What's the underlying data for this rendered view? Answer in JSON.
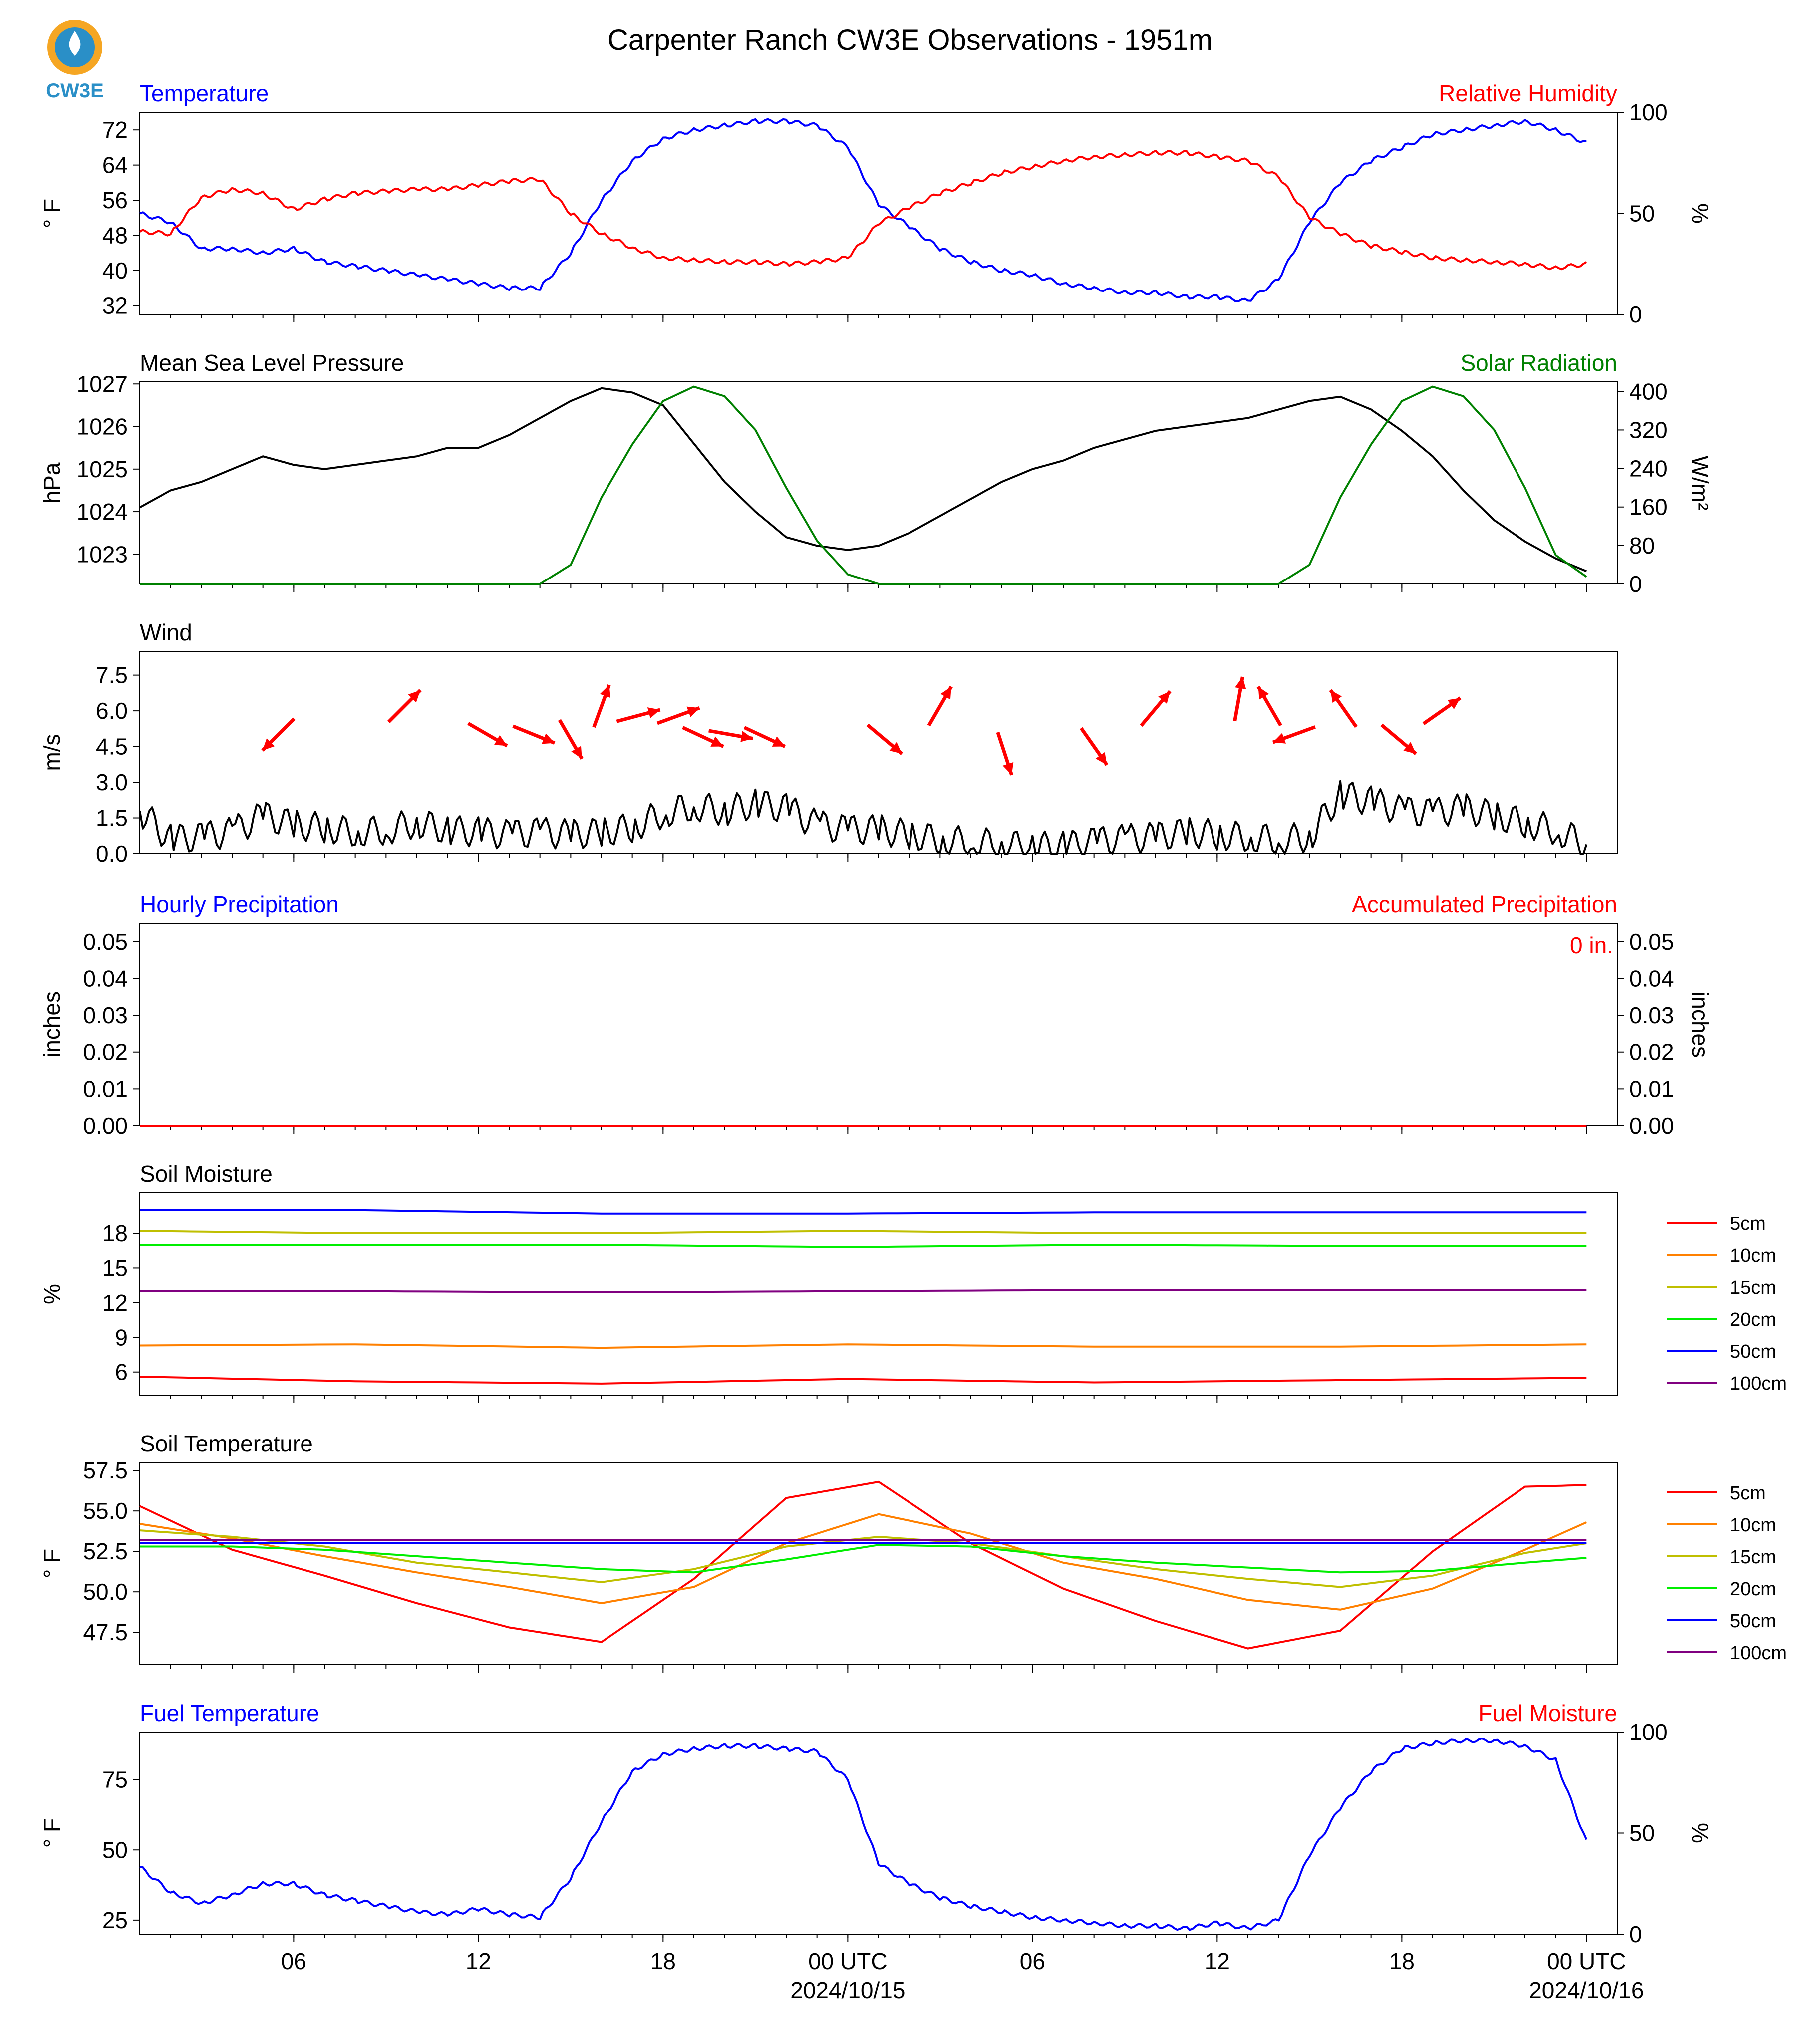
{
  "title": "Carpenter Ranch CW3E Observations - 1951m",
  "logo_text": "CW3E",
  "time_axis": {
    "tick_labels": [
      "06",
      "12",
      "18",
      "00 UTC",
      "06",
      "12",
      "18",
      "00 UTC"
    ],
    "date_labels": [
      "2024/10/15",
      "2024/10/16"
    ]
  },
  "chart_data": [
    {
      "type": "line",
      "title_left": "Temperature",
      "title_right": "Relative Humidity",
      "ylabel_left": "° F",
      "ylabel_right": "%",
      "ylim_left": [
        30,
        76
      ],
      "ylim_right": [
        0,
        100
      ],
      "yticks_left": [
        32,
        40,
        48,
        56,
        64,
        72
      ],
      "yticks_right": [
        0,
        50,
        100
      ],
      "hours": [
        1,
        2,
        3,
        4,
        5,
        6,
        7,
        8,
        9,
        10,
        11,
        12,
        13,
        14,
        15,
        16,
        17,
        18,
        19,
        20,
        21,
        22,
        23,
        24,
        25,
        26,
        27,
        28,
        29,
        30,
        31,
        32,
        33,
        34,
        35,
        36,
        37,
        38,
        39,
        40,
        41,
        42,
        43,
        44,
        45,
        46,
        47,
        48
      ],
      "series": [
        {
          "name": "Temperature",
          "axis": "left",
          "color": "#0000ff",
          "values": [
            53,
            51,
            45,
            45,
            44,
            45,
            42,
            41,
            40,
            39,
            38,
            37,
            36,
            36,
            44,
            56,
            65,
            70,
            72,
            73,
            74,
            74,
            73,
            68,
            55,
            50,
            45,
            42,
            40,
            39,
            37,
            36,
            35,
            35,
            34,
            34,
            33,
            38,
            51,
            60,
            65,
            68,
            71,
            72,
            73,
            74,
            72,
            69
          ]
        },
        {
          "name": "Relative Humidity",
          "axis": "right",
          "color": "#ff0000",
          "values": [
            41,
            40,
            58,
            62,
            60,
            52,
            57,
            60,
            61,
            62,
            62,
            64,
            66,
            67,
            50,
            40,
            33,
            28,
            27,
            26,
            26,
            25,
            26,
            28,
            45,
            53,
            60,
            65,
            70,
            73,
            76,
            78,
            79,
            80,
            80,
            78,
            76,
            68,
            48,
            40,
            34,
            31,
            28,
            27,
            26,
            25,
            23,
            25
          ]
        }
      ]
    },
    {
      "type": "line",
      "title_left": "Mean Sea Level Pressure",
      "title_right": "Solar Radiation",
      "ylabel_left": "hPa",
      "ylabel_right": "W/m²",
      "ylim_left": [
        1022.3,
        1027.05
      ],
      "ylim_right": [
        0,
        420
      ],
      "yticks_left": [
        1023,
        1024,
        1025,
        1026,
        1027
      ],
      "yticks_right": [
        0,
        80,
        160,
        240,
        320,
        400
      ],
      "hours": [
        1,
        2,
        3,
        4,
        5,
        6,
        7,
        8,
        9,
        10,
        11,
        12,
        13,
        14,
        15,
        16,
        17,
        18,
        19,
        20,
        21,
        22,
        23,
        24,
        25,
        26,
        27,
        28,
        29,
        30,
        31,
        32,
        33,
        34,
        35,
        36,
        37,
        38,
        39,
        40,
        41,
        42,
        43,
        44,
        45,
        46,
        47,
        48
      ],
      "series": [
        {
          "name": "Mean Sea Level Pressure",
          "axis": "left",
          "color": "#000000",
          "values": [
            1024.1,
            1024.5,
            1024.7,
            1025.0,
            1025.3,
            1025.1,
            1025.0,
            1025.1,
            1025.2,
            1025.3,
            1025.5,
            1025.5,
            1025.8,
            1026.2,
            1026.6,
            1026.9,
            1026.8,
            1026.5,
            1025.6,
            1024.7,
            1024.0,
            1023.4,
            1023.2,
            1023.1,
            1023.2,
            1023.5,
            1023.9,
            1024.3,
            1024.7,
            1025.0,
            1025.2,
            1025.5,
            1025.7,
            1025.9,
            1026.0,
            1026.1,
            1026.2,
            1026.4,
            1026.6,
            1026.7,
            1026.4,
            1025.9,
            1025.3,
            1024.5,
            1023.8,
            1023.3,
            1022.9,
            1022.6
          ]
        },
        {
          "name": "Solar Radiation",
          "axis": "right",
          "color": "#008000",
          "values": [
            0,
            0,
            0,
            0,
            0,
            0,
            0,
            0,
            0,
            0,
            0,
            0,
            0,
            0,
            40,
            180,
            290,
            380,
            410,
            390,
            320,
            200,
            90,
            20,
            0,
            0,
            0,
            0,
            0,
            0,
            0,
            0,
            0,
            0,
            0,
            0,
            0,
            0,
            40,
            180,
            290,
            380,
            410,
            390,
            320,
            200,
            60,
            15
          ]
        }
      ]
    },
    {
      "type": "line",
      "title_left": "Wind",
      "ylabel_left": "m/s",
      "ylim_left": [
        0,
        8.5
      ],
      "yticks_left": [
        0.0,
        1.5,
        3.0,
        4.5,
        6.0,
        7.5
      ],
      "hours": [
        1,
        2,
        3,
        4,
        5,
        6,
        7,
        8,
        9,
        10,
        11,
        12,
        13,
        14,
        15,
        16,
        17,
        18,
        19,
        20,
        21,
        22,
        23,
        24,
        25,
        26,
        27,
        28,
        29,
        30,
        31,
        32,
        33,
        34,
        35,
        36,
        37,
        38,
        39,
        40,
        41,
        42,
        43,
        44,
        45,
        46,
        47,
        48
      ],
      "series": [
        {
          "name": "Wind speed",
          "color": "#000000",
          "values": [
            1.8,
            0.6,
            0.7,
            0.9,
            1.6,
            1.2,
            1.1,
            0.9,
            1.0,
            1.3,
            1.0,
            0.9,
            0.8,
            0.9,
            0.8,
            0.9,
            1.1,
            1.7,
            2.0,
            1.8,
            2.1,
            1.9,
            1.2,
            1.0,
            1.0,
            0.8,
            0.6,
            0.5,
            0.4,
            0.3,
            0.3,
            0.5,
            0.6,
            0.7,
            0.9,
            0.8,
            0.7,
            0.6,
            0.7,
            2.5,
            2.2,
            1.8,
            1.7,
            1.9,
            1.6,
            1.3,
            1.0,
            0.4
          ]
        }
      ],
      "wind_arrows": [
        {
          "hour": 5.5,
          "speed": 5.0,
          "angle_deg": 135
        },
        {
          "hour": 9.6,
          "speed": 6.2,
          "angle_deg": -45
        },
        {
          "hour": 12.3,
          "speed": 5.0,
          "angle_deg": 30
        },
        {
          "hour": 13.8,
          "speed": 5.0,
          "angle_deg": 22
        },
        {
          "hour": 15.0,
          "speed": 4.8,
          "angle_deg": 60
        },
        {
          "hour": 16.0,
          "speed": 6.2,
          "angle_deg": -70
        },
        {
          "hour": 17.2,
          "speed": 5.8,
          "angle_deg": -15
        },
        {
          "hour": 18.5,
          "speed": 5.8,
          "angle_deg": -20
        },
        {
          "hour": 19.3,
          "speed": 4.9,
          "angle_deg": 25
        },
        {
          "hour": 20.2,
          "speed": 5.0,
          "angle_deg": 10
        },
        {
          "hour": 21.3,
          "speed": 4.9,
          "angle_deg": 25
        },
        {
          "hour": 25.2,
          "speed": 4.8,
          "angle_deg": 40
        },
        {
          "hour": 27.0,
          "speed": 6.2,
          "angle_deg": -60
        },
        {
          "hour": 29.1,
          "speed": 4.2,
          "angle_deg": 72
        },
        {
          "hour": 32.0,
          "speed": 4.5,
          "angle_deg": 55
        },
        {
          "hour": 34.0,
          "speed": 6.1,
          "angle_deg": -50
        },
        {
          "hour": 36.7,
          "speed": 6.5,
          "angle_deg": -80
        },
        {
          "hour": 37.7,
          "speed": 6.2,
          "angle_deg": -120
        },
        {
          "hour": 38.5,
          "speed": 5.0,
          "angle_deg": 160
        },
        {
          "hour": 40.1,
          "speed": 6.1,
          "angle_deg": -125
        },
        {
          "hour": 41.9,
          "speed": 4.8,
          "angle_deg": 40
        },
        {
          "hour": 43.3,
          "speed": 6.0,
          "angle_deg": -35
        }
      ]
    },
    {
      "type": "line",
      "title_left": "Hourly Precipitation",
      "title_right": "Accumulated Precipitation",
      "ylabel_left": "inches",
      "ylabel_right": "inches",
      "ylim_left": [
        0,
        0.055
      ],
      "ylim_right": [
        0,
        0.055
      ],
      "yticks_left": [
        0.0,
        0.01,
        0.02,
        0.03,
        0.04,
        0.05
      ],
      "yticks_right": [
        0.0,
        0.01,
        0.02,
        0.03,
        0.04,
        0.05
      ],
      "annotation": "0 in.",
      "series": [
        {
          "name": "Hourly Precipitation",
          "color": "#0000ff",
          "values": [
            0.0,
            0.0
          ]
        },
        {
          "name": "Accumulated Precipitation",
          "color": "#ff0000",
          "values": [
            0.0,
            0.0
          ]
        }
      ]
    },
    {
      "type": "line",
      "title_left": "Soil Moisture",
      "ylabel_left": "%",
      "ylim_left": [
        4,
        21.5
      ],
      "yticks_left": [
        6,
        9,
        12,
        15,
        18
      ],
      "hours": [
        1,
        8,
        16,
        24,
        32,
        40,
        48
      ],
      "series": [
        {
          "name": "5cm",
          "color": "#ff0000",
          "values": [
            5.6,
            5.2,
            5.0,
            5.4,
            5.1,
            5.3,
            5.5
          ]
        },
        {
          "name": "10cm",
          "color": "#ff8000",
          "values": [
            8.3,
            8.4,
            8.1,
            8.4,
            8.2,
            8.2,
            8.4
          ]
        },
        {
          "name": "15cm",
          "color": "#bfbf00",
          "values": [
            18.2,
            18.0,
            18.0,
            18.2,
            18.0,
            18.0,
            18.0
          ]
        },
        {
          "name": "20cm",
          "color": "#00ee00",
          "values": [
            17.0,
            17.0,
            17.0,
            16.8,
            17.0,
            16.9,
            16.9
          ]
        },
        {
          "name": "50cm",
          "color": "#0000ff",
          "values": [
            20.0,
            20.0,
            19.7,
            19.7,
            19.8,
            19.8,
            19.8
          ]
        },
        {
          "name": "100cm",
          "color": "#800080",
          "values": [
            13.0,
            13.0,
            12.9,
            13.0,
            13.1,
            13.1,
            13.1
          ]
        }
      ]
    },
    {
      "type": "line",
      "title_left": "Soil Temperature",
      "ylabel_left": "° F",
      "ylim_left": [
        45.5,
        58.0
      ],
      "yticks_left": [
        47.5,
        50.0,
        52.5,
        55.0,
        57.5
      ],
      "hours": [
        1,
        4,
        7,
        10,
        13,
        16,
        19,
        22,
        25,
        28,
        31,
        34,
        37,
        40,
        43,
        46,
        48
      ],
      "series": [
        {
          "name": "5cm",
          "color": "#ff0000",
          "values": [
            55.3,
            52.6,
            51.0,
            49.3,
            47.8,
            46.9,
            50.8,
            55.8,
            56.8,
            53.0,
            50.2,
            48.2,
            46.5,
            47.6,
            52.5,
            56.5,
            56.6
          ]
        },
        {
          "name": "10cm",
          "color": "#ff8000",
          "values": [
            54.2,
            53.3,
            52.2,
            51.2,
            50.3,
            49.3,
            50.3,
            53.0,
            54.8,
            53.6,
            51.8,
            50.8,
            49.5,
            48.9,
            50.2,
            52.6,
            54.3
          ]
        },
        {
          "name": "15cm",
          "color": "#bfbf00",
          "values": [
            53.8,
            53.4,
            52.8,
            51.8,
            51.2,
            50.6,
            51.4,
            52.8,
            53.4,
            53.0,
            52.2,
            51.4,
            50.8,
            50.3,
            51.0,
            52.4,
            53.0
          ]
        },
        {
          "name": "20cm",
          "color": "#00ee00",
          "values": [
            52.8,
            52.8,
            52.6,
            52.2,
            51.8,
            51.4,
            51.2,
            52.0,
            52.9,
            52.8,
            52.2,
            51.8,
            51.5,
            51.2,
            51.3,
            51.8,
            52.1
          ]
        },
        {
          "name": "50cm",
          "color": "#0000ff",
          "values": [
            53.0,
            53.0,
            53.0,
            53.0,
            53.0,
            53.0,
            53.0,
            53.0,
            53.0,
            53.0,
            53.0,
            53.0,
            53.0,
            53.0,
            53.0,
            53.0,
            53.0
          ]
        },
        {
          "name": "100cm",
          "color": "#800080",
          "values": [
            53.2,
            53.2,
            53.2,
            53.2,
            53.2,
            53.2,
            53.2,
            53.2,
            53.2,
            53.2,
            53.2,
            53.2,
            53.2,
            53.2,
            53.2,
            53.2,
            53.2
          ]
        }
      ]
    },
    {
      "type": "line",
      "title_left": "Fuel Temperature",
      "title_right": "Fuel Moisture",
      "ylabel_left": "° F",
      "ylabel_right": "%",
      "ylim_left": [
        20,
        92
      ],
      "ylim_right": [
        0,
        100
      ],
      "yticks_left": [
        25,
        50,
        75
      ],
      "yticks_right": [
        0,
        50,
        100
      ],
      "hours": [
        1,
        2,
        3,
        4,
        5,
        6,
        7,
        8,
        9,
        10,
        11,
        12,
        13,
        14,
        15,
        16,
        17,
        18,
        19,
        20,
        21,
        22,
        23,
        24,
        25,
        26,
        27,
        28,
        29,
        30,
        31,
        32,
        33,
        34,
        35,
        36,
        37,
        38,
        39,
        40,
        41,
        42,
        43,
        44,
        45,
        46,
        47,
        48
      ],
      "series": [
        {
          "name": "Fuel Temperature",
          "color": "#0000ff",
          "values": [
            44,
            35,
            31,
            34,
            38,
            38,
            34,
            32,
            30,
            28,
            27,
            29,
            27,
            26,
            40,
            60,
            78,
            84,
            86,
            87,
            87,
            86,
            85,
            75,
            45,
            38,
            33,
            30,
            28,
            26,
            25,
            24,
            23,
            23,
            22,
            24,
            22,
            25,
            48,
            65,
            78,
            86,
            88,
            89,
            89,
            87,
            82,
            53
          ]
        }
      ]
    }
  ],
  "legend_labels": [
    "5cm",
    "10cm",
    "15cm",
    "20cm",
    "50cm",
    "100cm"
  ]
}
